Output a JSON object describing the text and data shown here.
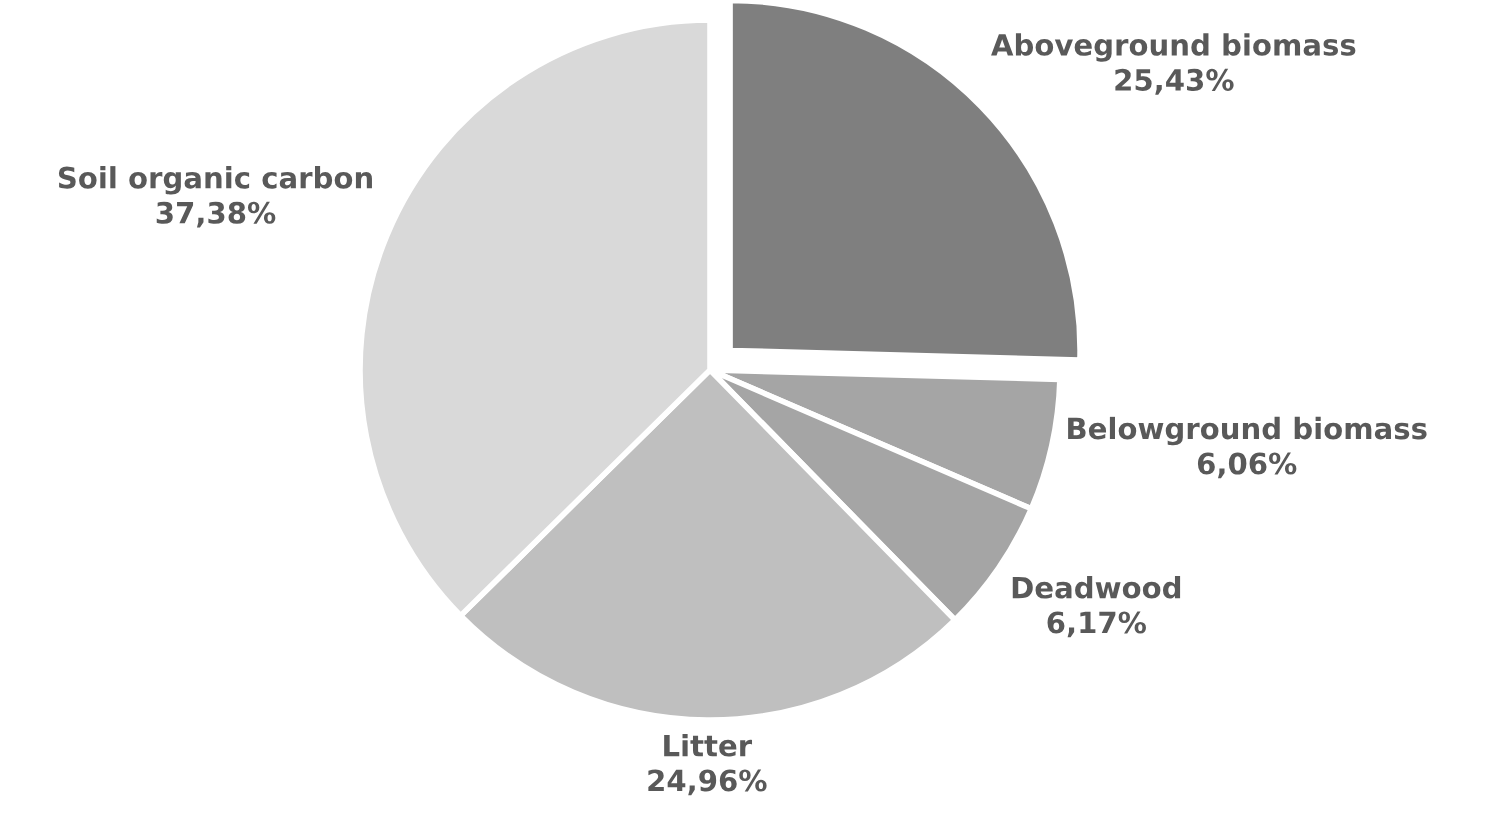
{
  "chart_data": {
    "type": "pie",
    "categories": [
      "Aboveground biomass",
      "Belowground biomass",
      "Deadwood",
      "Litter",
      "Soil organic carbon"
    ],
    "values": [
      25.43,
      6.06,
      6.17,
      24.96,
      37.38
    ],
    "value_labels": [
      "25,43%",
      "6,06%",
      "6,17%",
      "24,96%",
      "37,38%"
    ],
    "colors": [
      "#7f7f7f",
      "#a5a5a5",
      "#a5a5a5",
      "#bfbfbf",
      "#d9d9d9"
    ],
    "legend": false
  }
}
